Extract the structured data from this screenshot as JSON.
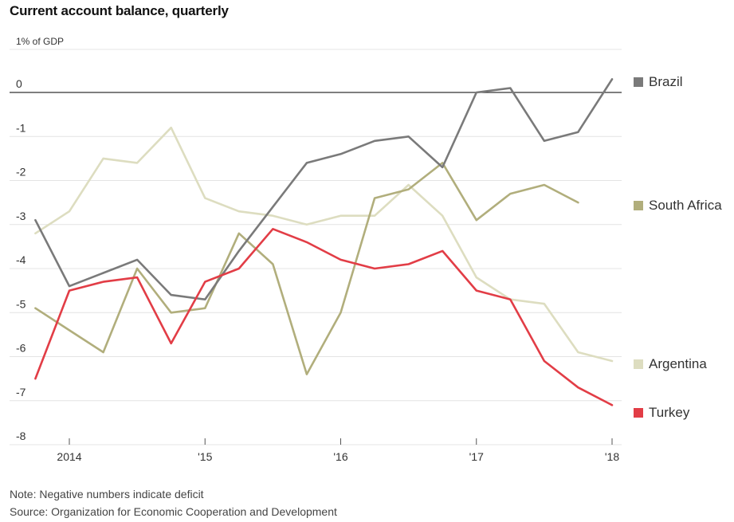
{
  "chart_data": {
    "type": "line",
    "title": "Current account balance, quarterly",
    "ylabel": "1% of GDP",
    "ylim": [
      -8,
      0.5
    ],
    "yticks": [
      0,
      -1,
      -2,
      -3,
      -4,
      -5,
      -6,
      -7,
      -8
    ],
    "xticks": [
      {
        "x": 2014,
        "label": "2014"
      },
      {
        "x": 2015,
        "label": "'15"
      },
      {
        "x": 2016,
        "label": "'16"
      },
      {
        "x": 2017,
        "label": "'17"
      },
      {
        "x": 2018,
        "label": "'18"
      }
    ],
    "x": [
      2013.75,
      2014.0,
      2014.25,
      2014.5,
      2014.75,
      2015.0,
      2015.25,
      2015.5,
      2015.75,
      2016.0,
      2016.25,
      2016.5,
      2016.75,
      2017.0,
      2017.25,
      2017.5,
      2017.75,
      2018.0
    ],
    "series": [
      {
        "name": "Brazil",
        "color": "#7a7a7a",
        "values": [
          -2.9,
          -4.4,
          -4.1,
          -3.8,
          -4.6,
          -4.7,
          -3.6,
          -2.6,
          -1.6,
          -1.4,
          -1.1,
          -1.0,
          -1.7,
          0.0,
          0.1,
          -1.1,
          -0.9,
          0.3
        ]
      },
      {
        "name": "South Africa",
        "color": "#b1ae7c",
        "values": [
          -4.9,
          -5.4,
          -5.9,
          -4.0,
          -5.0,
          -4.9,
          -3.2,
          -3.9,
          -6.4,
          -5.0,
          -2.4,
          -2.2,
          -1.6,
          -2.9,
          -2.3,
          -2.1,
          -2.5,
          null
        ]
      },
      {
        "name": "Argentina",
        "color": "#ddddc0",
        "values": [
          -3.2,
          -2.7,
          -1.5,
          -1.6,
          -0.8,
          -2.4,
          -2.7,
          -2.8,
          -3.0,
          -2.8,
          -2.8,
          -2.1,
          -2.8,
          -4.2,
          -4.7,
          -4.8,
          -5.9,
          -6.1
        ]
      },
      {
        "name": "Turkey",
        "color": "#e23d46",
        "values": [
          -6.5,
          -4.5,
          -4.3,
          -4.2,
          -5.7,
          -4.3,
          -4.0,
          -3.1,
          -3.4,
          -3.8,
          -4.0,
          -3.9,
          -3.6,
          -4.5,
          -4.7,
          -6.1,
          -6.7,
          -7.1
        ]
      }
    ],
    "legend_placement": "right",
    "grid": true
  },
  "notes": {
    "note": "Note: Negative numbers indicate deficit",
    "source": "Source: Organization for Economic Cooperation and Development"
  }
}
